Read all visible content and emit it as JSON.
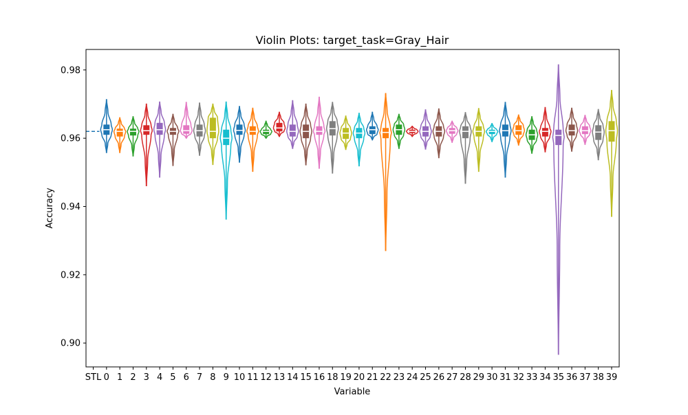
{
  "chart_data": {
    "type": "violin",
    "title": "Violin Plots: target_task=Gray_Hair",
    "xlabel": "Variable",
    "ylabel": "Accuracy",
    "ylim": [
      0.893,
      0.986
    ],
    "yticks": [
      0.9,
      0.92,
      0.94,
      0.96,
      0.98
    ],
    "ytick_labels": [
      "0.90",
      "0.92",
      "0.94",
      "0.96",
      "0.98"
    ],
    "grid": false,
    "baseline": {
      "category": "STL",
      "value": 0.962,
      "style": "dashed"
    },
    "categories": [
      "STL",
      "0",
      "1",
      "2",
      "3",
      "4",
      "5",
      "6",
      "7",
      "8",
      "9",
      "10",
      "11",
      "12",
      "13",
      "14",
      "15",
      "16",
      "18",
      "19",
      "20",
      "21",
      "22",
      "23",
      "24",
      "25",
      "26",
      "27",
      "28",
      "29",
      "30",
      "31",
      "32",
      "33",
      "34",
      "35",
      "36",
      "37",
      "38",
      "39"
    ],
    "colors": [
      "#1f77b4",
      "#ff7f0e",
      "#2ca02c",
      "#d62728",
      "#9467bd",
      "#8c564b",
      "#e377c2",
      "#7f7f7f",
      "#bcbd22",
      "#17becf"
    ],
    "violins": [
      {
        "category": "0",
        "min": 0.9558,
        "q1": 0.961,
        "median": 0.9625,
        "q3": 0.964,
        "max": 0.9713
      },
      {
        "category": "1",
        "min": 0.9558,
        "q1": 0.9605,
        "median": 0.962,
        "q3": 0.9628,
        "max": 0.966
      },
      {
        "category": "2",
        "min": 0.9548,
        "q1": 0.9608,
        "median": 0.962,
        "q3": 0.9628,
        "max": 0.9663
      },
      {
        "category": "3",
        "min": 0.9461,
        "q1": 0.961,
        "median": 0.9622,
        "q3": 0.9638,
        "max": 0.97
      },
      {
        "category": "4",
        "min": 0.9486,
        "q1": 0.961,
        "median": 0.9625,
        "q3": 0.9645,
        "max": 0.9706
      },
      {
        "category": "5",
        "min": 0.952,
        "q1": 0.961,
        "median": 0.962,
        "q3": 0.963,
        "max": 0.967
      },
      {
        "category": "6",
        "min": 0.96,
        "q1": 0.9613,
        "median": 0.9622,
        "q3": 0.9638,
        "max": 0.9705
      },
      {
        "category": "7",
        "min": 0.955,
        "q1": 0.9605,
        "median": 0.9622,
        "q3": 0.964,
        "max": 0.9703
      },
      {
        "category": "8",
        "min": 0.9523,
        "q1": 0.96,
        "median": 0.962,
        "q3": 0.966,
        "max": 0.97
      },
      {
        "category": "9",
        "min": 0.9363,
        "q1": 0.958,
        "median": 0.96,
        "q3": 0.9625,
        "max": 0.9706
      },
      {
        "category": "10",
        "min": 0.953,
        "q1": 0.961,
        "median": 0.9623,
        "q3": 0.964,
        "max": 0.9693
      },
      {
        "category": "11",
        "min": 0.9503,
        "q1": 0.961,
        "median": 0.962,
        "q3": 0.9635,
        "max": 0.9688
      },
      {
        "category": "12",
        "min": 0.96,
        "q1": 0.9612,
        "median": 0.962,
        "q3": 0.9625,
        "max": 0.965
      },
      {
        "category": "13",
        "min": 0.9605,
        "q1": 0.962,
        "median": 0.963,
        "q3": 0.9645,
        "max": 0.9676
      },
      {
        "category": "14",
        "min": 0.957,
        "q1": 0.9605,
        "median": 0.962,
        "q3": 0.964,
        "max": 0.971
      },
      {
        "category": "15",
        "min": 0.9522,
        "q1": 0.96,
        "median": 0.962,
        "q3": 0.964,
        "max": 0.97
      },
      {
        "category": "16",
        "min": 0.9512,
        "q1": 0.961,
        "median": 0.962,
        "q3": 0.9635,
        "max": 0.972
      },
      {
        "category": "18",
        "min": 0.9498,
        "q1": 0.9608,
        "median": 0.9628,
        "q3": 0.965,
        "max": 0.9705
      },
      {
        "category": "19",
        "min": 0.9567,
        "q1": 0.9598,
        "median": 0.9615,
        "q3": 0.963,
        "max": 0.9665
      },
      {
        "category": "20",
        "min": 0.9519,
        "q1": 0.96,
        "median": 0.9615,
        "q3": 0.963,
        "max": 0.9673
      },
      {
        "category": "21",
        "min": 0.9595,
        "q1": 0.9612,
        "median": 0.9625,
        "q3": 0.9635,
        "max": 0.9676
      },
      {
        "category": "22",
        "min": 0.9271,
        "q1": 0.96,
        "median": 0.9617,
        "q3": 0.963,
        "max": 0.9731
      },
      {
        "category": "23",
        "min": 0.957,
        "q1": 0.961,
        "median": 0.9625,
        "q3": 0.964,
        "max": 0.967
      },
      {
        "category": "24",
        "min": 0.9605,
        "q1": 0.9615,
        "median": 0.962,
        "q3": 0.9625,
        "max": 0.9635
      },
      {
        "category": "25",
        "min": 0.9568,
        "q1": 0.9605,
        "median": 0.962,
        "q3": 0.9635,
        "max": 0.9683
      },
      {
        "category": "26",
        "min": 0.9543,
        "q1": 0.9605,
        "median": 0.962,
        "q3": 0.9635,
        "max": 0.9686
      },
      {
        "category": "27",
        "min": 0.9588,
        "q1": 0.9613,
        "median": 0.9622,
        "q3": 0.963,
        "max": 0.965
      },
      {
        "category": "28",
        "min": 0.9468,
        "q1": 0.96,
        "median": 0.962,
        "q3": 0.9635,
        "max": 0.9675
      },
      {
        "category": "29",
        "min": 0.9503,
        "q1": 0.9605,
        "median": 0.962,
        "q3": 0.9635,
        "max": 0.9687
      },
      {
        "category": "30",
        "min": 0.959,
        "q1": 0.9612,
        "median": 0.962,
        "q3": 0.9625,
        "max": 0.9643
      },
      {
        "category": "31",
        "min": 0.9486,
        "q1": 0.9605,
        "median": 0.9622,
        "q3": 0.964,
        "max": 0.9705
      },
      {
        "category": "32",
        "min": 0.958,
        "q1": 0.961,
        "median": 0.9622,
        "q3": 0.9638,
        "max": 0.9668
      },
      {
        "category": "33",
        "min": 0.9556,
        "q1": 0.9595,
        "median": 0.961,
        "q3": 0.9625,
        "max": 0.9663
      },
      {
        "category": "34",
        "min": 0.956,
        "q1": 0.9605,
        "median": 0.962,
        "q3": 0.963,
        "max": 0.969
      },
      {
        "category": "35",
        "min": 0.8967,
        "q1": 0.958,
        "median": 0.9608,
        "q3": 0.9625,
        "max": 0.9815
      },
      {
        "category": "36",
        "min": 0.9562,
        "q1": 0.9608,
        "median": 0.9622,
        "q3": 0.964,
        "max": 0.9688
      },
      {
        "category": "37",
        "min": 0.9582,
        "q1": 0.9612,
        "median": 0.9622,
        "q3": 0.9635,
        "max": 0.9667
      },
      {
        "category": "38",
        "min": 0.9537,
        "q1": 0.9595,
        "median": 0.9618,
        "q3": 0.9638,
        "max": 0.9684
      },
      {
        "category": "39",
        "min": 0.9371,
        "q1": 0.959,
        "median": 0.9622,
        "q3": 0.965,
        "max": 0.974
      }
    ]
  }
}
